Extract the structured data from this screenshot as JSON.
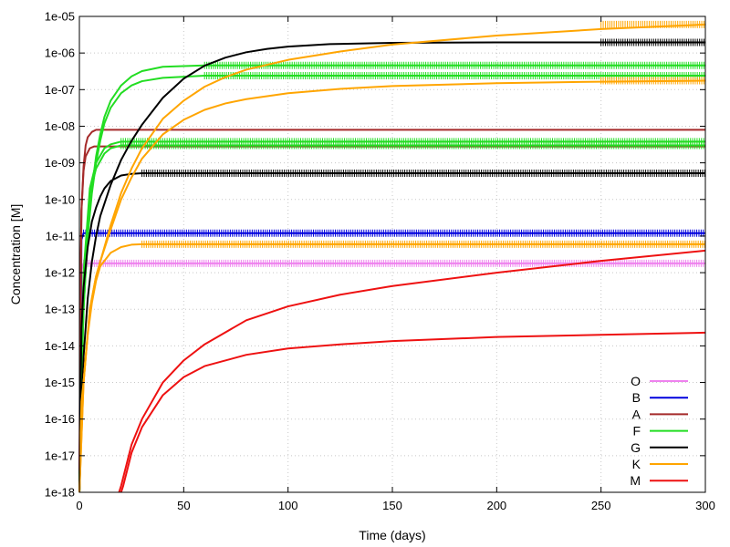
{
  "chart_data": {
    "type": "line",
    "title": "",
    "xlabel": "Time (days)",
    "ylabel": "Concentration [M]",
    "xlim": [
      0,
      300
    ],
    "ylim": [
      1e-18,
      1e-05
    ],
    "yscale": "log",
    "grid": true,
    "legend_position": "bottom-right",
    "x_ticks": [
      "0",
      "50",
      "100",
      "150",
      "200",
      "250",
      "300"
    ],
    "x_tick_values": [
      0,
      50,
      100,
      150,
      200,
      250,
      300
    ],
    "y_ticks": [
      "1e-18",
      "1e-17",
      "1e-16",
      "1e-15",
      "1e-14",
      "1e-13",
      "1e-12",
      "1e-11",
      "1e-10",
      "1e-09",
      "1e-08",
      "1e-07",
      "1e-06",
      "1e-05"
    ],
    "y_tick_values": [
      1e-18,
      1e-17,
      1e-16,
      1e-15,
      1e-14,
      1e-13,
      1e-12,
      1e-11,
      1e-10,
      1e-09,
      1e-08,
      1e-07,
      1e-06,
      1e-05
    ],
    "series": [
      {
        "name": "O",
        "color": "#ee82ee",
        "jagged": true,
        "lines": [
          {
            "x": [
              0,
              1,
              2,
              300
            ],
            "y": [
              1e-18,
              1.2e-12,
              1.8e-12,
              1.8e-12
            ]
          }
        ]
      },
      {
        "name": "B",
        "color": "#0000dd",
        "jagged": true,
        "lines": [
          {
            "x": [
              0,
              1,
              2,
              300
            ],
            "y": [
              1e-18,
              8e-12,
              1.2e-11,
              1.2e-11
            ]
          }
        ]
      },
      {
        "name": "A",
        "color": "#a52a2a",
        "jagged": false,
        "lines": [
          {
            "x": [
              0,
              0.5,
              1,
              2,
              3,
              4,
              6,
              8,
              300
            ],
            "y": [
              1e-18,
              1e-12,
              5e-11,
              8e-10,
              3e-09,
              5e-09,
              7e-09,
              8e-09,
              8e-09
            ]
          },
          {
            "x": [
              0,
              1,
              2,
              3,
              5,
              7,
              300
            ],
            "y": [
              1e-18,
              5e-11,
              6e-10,
              1.5e-09,
              2.5e-09,
              2.8e-09,
              2.8e-09
            ]
          }
        ]
      },
      {
        "name": "F",
        "color": "#22dd22",
        "jagged": true,
        "lines": [
          {
            "x": [
              0,
              1,
              2,
              4,
              6,
              8,
              10,
              12,
              15,
              20,
              25,
              30,
              40,
              60,
              300
            ],
            "y": [
              1e-18,
              1e-15,
              1e-13,
              1e-11,
              2e-10,
              1.5e-09,
              6e-09,
              1.8e-08,
              5e-08,
              1.3e-07,
              2.3e-07,
              3.2e-07,
              4.2e-07,
              4.6e-07,
              4.6e-07
            ]
          },
          {
            "x": [
              0,
              1,
              2,
              4,
              6,
              8,
              10,
              12,
              15,
              20,
              25,
              30,
              40,
              60,
              300
            ],
            "y": [
              1e-18,
              1e-15,
              1e-13,
              1e-11,
              1.5e-10,
              1e-09,
              4e-09,
              1.2e-08,
              3.2e-08,
              8e-08,
              1.3e-07,
              1.7e-07,
              2.1e-07,
              2.4e-07,
              2.4e-07
            ]
          },
          {
            "x": [
              0,
              2,
              5,
              8,
              12,
              15,
              20,
              300
            ],
            "y": [
              1e-18,
              1e-12,
              2e-10,
              1e-09,
              2.5e-09,
              3.2e-09,
              3.8e-09,
              3.8e-09
            ]
          },
          {
            "x": [
              0,
              2,
              5,
              8,
              12,
              15,
              20,
              300
            ],
            "y": [
              1e-18,
              8e-13,
              1.5e-10,
              7e-10,
              1.8e-09,
              2.5e-09,
              3e-09,
              3e-09
            ]
          }
        ]
      },
      {
        "name": "G",
        "color": "#000000",
        "jagged": true,
        "lines": [
          {
            "x": [
              0,
              2,
              4,
              6,
              8,
              10,
              15,
              20,
              25,
              30,
              40,
              50,
              60,
              70,
              80,
              90,
              100,
              120,
              150,
              200,
              250,
              300
            ],
            "y": [
              1e-18,
              5e-15,
              2e-13,
              2e-12,
              1e-11,
              3.5e-11,
              2.5e-10,
              1.2e-09,
              4e-09,
              1.1e-08,
              6e-08,
              2e-07,
              4.5e-07,
              7.5e-07,
              1.05e-06,
              1.3e-06,
              1.5e-06,
              1.75e-06,
              1.9e-06,
              1.95e-06,
              1.95e-06,
              1.95e-06
            ]
          },
          {
            "x": [
              0,
              1,
              2,
              4,
              6,
              8,
              10,
              12,
              15,
              20,
              25,
              30,
              300
            ],
            "y": [
              1e-18,
              3e-14,
              4e-13,
              5e-12,
              2.5e-11,
              6e-11,
              1.2e-10,
              2e-10,
              3.2e-10,
              4.5e-10,
              5e-10,
              5.2e-10,
              5.2e-10
            ]
          }
        ]
      },
      {
        "name": "K",
        "color": "#ffa500",
        "jagged": true,
        "lines": [
          {
            "x": [
              0,
              2,
              5,
              8,
              10,
              15,
              20,
              25,
              30,
              40,
              50,
              60,
              70,
              80,
              100,
              125,
              150,
              200,
              250,
              300
            ],
            "y": [
              1e-18,
              1e-15,
              1e-13,
              8e-13,
              2e-12,
              2e-11,
              1.5e-10,
              7e-10,
              2.5e-09,
              1.6e-08,
              5e-08,
              1.2e-07,
              2.2e-07,
              3.5e-07,
              6.5e-07,
              1.1e-06,
              1.7e-06,
              3e-06,
              4.5e-06,
              6e-06
            ]
          },
          {
            "x": [
              0,
              2,
              5,
              8,
              10,
              15,
              20,
              25,
              30,
              40,
              50,
              60,
              70,
              80,
              100,
              125,
              150,
              200,
              250,
              300
            ],
            "y": [
              1e-18,
              1e-15,
              1e-13,
              8e-13,
              2e-12,
              1.5e-11,
              1e-10,
              4e-10,
              1.3e-09,
              6e-09,
              1.5e-08,
              2.8e-08,
              4.2e-08,
              5.5e-08,
              8e-08,
              1.05e-07,
              1.25e-07,
              1.5e-07,
              1.65e-07,
              1.75e-07
            ]
          },
          {
            "x": [
              0,
              1,
              2,
              3,
              4,
              6,
              8,
              10,
              15,
              20,
              25,
              30,
              300
            ],
            "y": [
              1e-18,
              3e-16,
              1e-15,
              5e-15,
              2e-14,
              1.5e-13,
              6e-13,
              1.5e-12,
              3.5e-12,
              5e-12,
              5.8e-12,
              6e-12,
              6e-12
            ]
          }
        ]
      },
      {
        "name": "M",
        "color": "#ee1111",
        "jagged": false,
        "lines": [
          {
            "x": [
              19,
              20,
              25,
              30,
              40,
              50,
              60,
              80,
              100,
              125,
              150,
              200,
              250,
              300
            ],
            "y": [
              1e-18,
              1.5e-18,
              2e-17,
              1e-16,
              1e-15,
              4e-15,
              1.1e-14,
              5e-14,
              1.2e-13,
              2.5e-13,
              4.3e-13,
              1e-12,
              2.1e-12,
              4e-12
            ]
          },
          {
            "x": [
              20,
              21,
              25,
              30,
              40,
              50,
              60,
              80,
              100,
              125,
              150,
              200,
              250,
              300
            ],
            "y": [
              1e-18,
              1.5e-18,
              1.2e-17,
              6e-17,
              4.5e-16,
              1.4e-15,
              2.8e-15,
              5.7e-15,
              8.5e-15,
              1.1e-14,
              1.35e-14,
              1.75e-14,
              2e-14,
              2.3e-14
            ]
          }
        ]
      }
    ]
  }
}
